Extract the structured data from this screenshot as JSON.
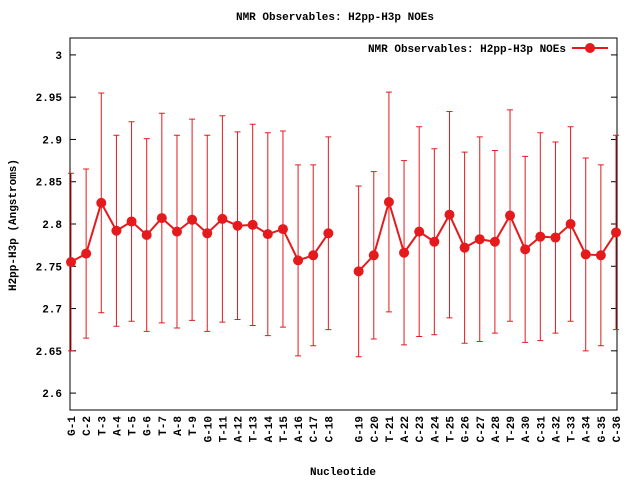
{
  "chart_data": {
    "type": "line",
    "title": "NMR Observables: H2pp-H3p NOEs",
    "x_label": "Nucleotide",
    "y_label": "H2pp-H3p (Angstroms)",
    "categories": [
      "G-1",
      "C-2",
      "T-3",
      "A-4",
      "T-5",
      "G-6",
      "T-7",
      "A-8",
      "T-9",
      "G-10",
      "T-11",
      "A-12",
      "T-13",
      "A-14",
      "T-15",
      "A-16",
      "C-17",
      "C-18",
      null,
      "G-19",
      "C-20",
      "T-21",
      "A-22",
      "C-23",
      "A-24",
      "T-25",
      "G-26",
      "C-27",
      "A-28",
      "T-29",
      "A-30",
      "C-31",
      "A-32",
      "T-33",
      "A-34",
      "G-35",
      "C-36"
    ],
    "series": [
      {
        "name": "NMR Observables: H2pp-H3p NOEs",
        "color": "#e41a1c",
        "values": [
          2.755,
          2.765,
          2.825,
          2.792,
          2.803,
          2.787,
          2.807,
          2.791,
          2.805,
          2.789,
          2.806,
          2.798,
          2.799,
          2.788,
          2.794,
          2.757,
          2.763,
          2.789,
          null,
          2.744,
          2.763,
          2.826,
          2.766,
          2.791,
          2.779,
          2.811,
          2.772,
          2.782,
          2.779,
          2.81,
          2.77,
          2.785,
          2.784,
          2.8,
          2.764,
          2.763,
          2.79
        ],
        "errors": [
          0.105,
          0.1,
          0.13,
          0.113,
          0.118,
          0.114,
          0.124,
          0.114,
          0.119,
          0.116,
          0.122,
          0.111,
          0.119,
          0.12,
          0.116,
          0.113,
          0.107,
          0.114,
          null,
          0.101,
          0.099,
          0.13,
          0.109,
          0.124,
          0.11,
          0.122,
          0.113,
          0.121,
          0.108,
          0.125,
          0.11,
          0.123,
          0.113,
          0.115,
          0.114,
          0.107,
          0.115
        ]
      }
    ],
    "ylim": [
      2.58,
      3.02
    ],
    "yticks": [
      2.6,
      2.65,
      2.7,
      2.75,
      2.8,
      2.85,
      2.9,
      2.95,
      3
    ],
    "legend": "top-right"
  }
}
